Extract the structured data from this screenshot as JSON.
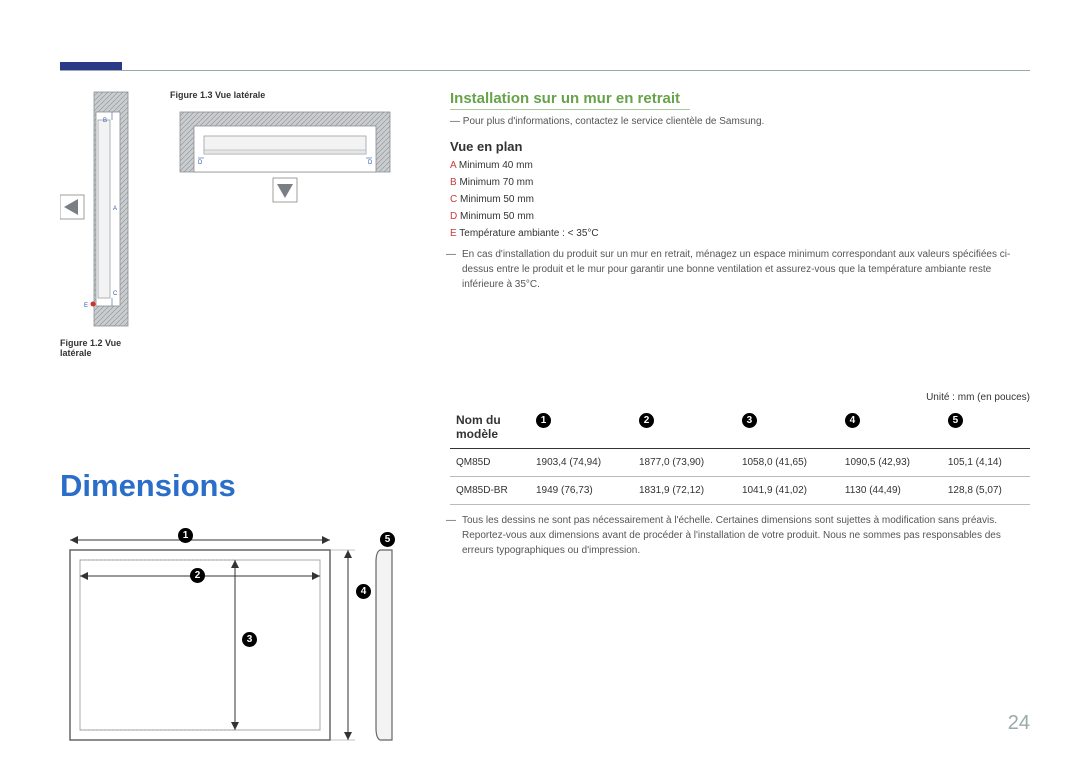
{
  "accent_color": "#2b3a86",
  "heading_color": "#2a6ec9",
  "green_color": "#67a34a",
  "page_number": "24",
  "fig13": {
    "caption": "Figure 1.3 Vue latérale"
  },
  "fig12": {
    "caption": "Figure 1.2 Vue latérale"
  },
  "fig12_labels": {
    "A": "A",
    "B": "B",
    "C": "C",
    "E": "E"
  },
  "fig13_labels": {
    "D_left": "D",
    "D_right": "D"
  },
  "dimensions_title": "Dimensions",
  "install": {
    "title": "Installation sur un mur en retrait",
    "contact_note": "Pour plus d'informations, contactez le service clientèle de Samsung.",
    "plan_title": "Vue en plan",
    "specs": [
      {
        "key": "A",
        "text": "Minimum 40 mm"
      },
      {
        "key": "B",
        "text": "Minimum 70 mm"
      },
      {
        "key": "C",
        "text": "Minimum 50 mm"
      },
      {
        "key": "D",
        "text": "Minimum 50 mm"
      },
      {
        "key": "E",
        "text": "Température ambiante : < 35°C"
      }
    ],
    "warning": "En cas d'installation du produit sur un mur en retrait, ménagez un espace minimum correspondant aux valeurs spécifiées ci-dessus entre le produit et le mur pour garantir une bonne ventilation et assurez-vous que la température ambiante reste inférieure à 35°C."
  },
  "table": {
    "unit_label": "Unité : mm (en pouces)",
    "model_header": "Nom du modèle",
    "cols": [
      "1",
      "2",
      "3",
      "4",
      "5"
    ],
    "rows": [
      {
        "model": "QM85D",
        "c1": "1903,4 (74,94)",
        "c2": "1877,0 (73,90)",
        "c3": "1058,0 (41,65)",
        "c4": "1090,5 (42,93)",
        "c5": "105,1 (4,14)"
      },
      {
        "model": "QM85D-BR",
        "c1": "1949 (76,73)",
        "c2": "1831,9 (72,12)",
        "c3": "1041,9 (41,02)",
        "c4": "1130 (44,49)",
        "c5": "128,8 (5,07)"
      }
    ],
    "footnote": "Tous les dessins ne sont pas nécessairement à l'échelle. Certaines dimensions sont sujettes à modification sans préavis. Reportez-vous aux dimensions avant de procéder à l'installation de votre produit. Nous ne sommes pas responsables des erreurs typographiques ou d'impression."
  },
  "diagram_labels": {
    "l1": "1",
    "l2": "2",
    "l3": "3",
    "l4": "4",
    "l5": "5"
  },
  "colors": {
    "wall_fill": "#c9cdd0",
    "wall_hatch": "#8a8e92",
    "panel_fill": "#f3f3f3",
    "panel_stroke": "#9aa0a6",
    "arrow_fill": "#7a7f85",
    "red_dot": "#d62d2d",
    "label_blue": "#2e5aa8"
  }
}
